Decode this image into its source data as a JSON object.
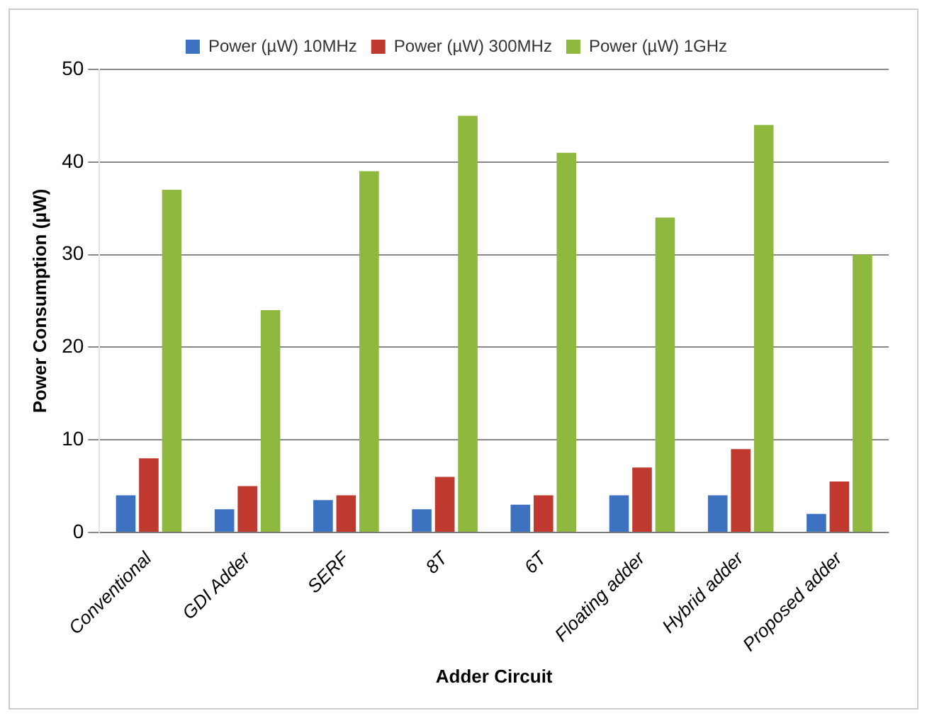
{
  "chart_data": {
    "type": "bar",
    "xlabel": "Adder Circuit",
    "ylabel": "Power Consumption (µW)",
    "categories": [
      "Conventional",
      "GDI Adder",
      "SERF",
      "8T",
      "6T",
      "Floating adder",
      "Hybrid adder",
      "Proposed adder"
    ],
    "series": [
      {
        "name": "Power (µW) 10MHz",
        "color": "#3c72c0",
        "values": [
          4,
          2.5,
          3.5,
          2.5,
          3,
          4,
          4,
          2
        ]
      },
      {
        "name": "Power (µW) 300MHz",
        "color": "#c0392f",
        "values": [
          8,
          5,
          4,
          6,
          4,
          7,
          9,
          5.5
        ]
      },
      {
        "name": "Power (µW) 1GHz",
        "color": "#8fb93e",
        "values": [
          37,
          24,
          39,
          45,
          41,
          34,
          44,
          30
        ]
      }
    ],
    "ylim": [
      0,
      50
    ],
    "yticks": [
      0,
      10,
      20,
      30,
      40,
      50
    ],
    "grid": "y",
    "legend": "top"
  }
}
